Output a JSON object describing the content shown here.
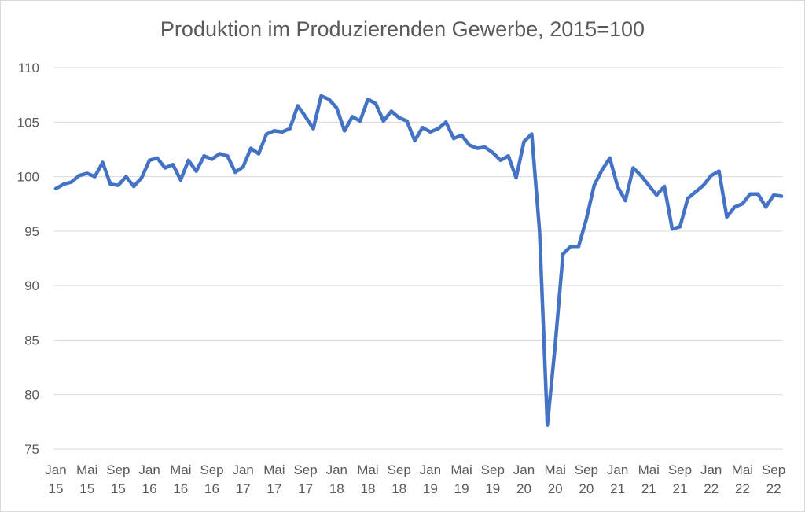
{
  "chart_data": {
    "type": "line",
    "title": "Produktion im Produzierenden Gewerbe, 2015=100",
    "xlabel": "",
    "ylabel": "",
    "ylim": [
      75,
      110
    ],
    "yticks": [
      75,
      80,
      85,
      90,
      95,
      100,
      105,
      110
    ],
    "grid": true,
    "legend": "none",
    "line_color": "#4472c4",
    "x_tick_labels": [
      {
        "month": "Jan",
        "year": "15",
        "index": 0
      },
      {
        "month": "Mai",
        "year": "15",
        "index": 4
      },
      {
        "month": "Sep",
        "year": "15",
        "index": 8
      },
      {
        "month": "Jan",
        "year": "16",
        "index": 12
      },
      {
        "month": "Mai",
        "year": "16",
        "index": 16
      },
      {
        "month": "Sep",
        "year": "16",
        "index": 20
      },
      {
        "month": "Jan",
        "year": "17",
        "index": 24
      },
      {
        "month": "Mai",
        "year": "17",
        "index": 28
      },
      {
        "month": "Sep",
        "year": "17",
        "index": 32
      },
      {
        "month": "Jan",
        "year": "18",
        "index": 36
      },
      {
        "month": "Mai",
        "year": "18",
        "index": 40
      },
      {
        "month": "Sep",
        "year": "18",
        "index": 44
      },
      {
        "month": "Jan",
        "year": "19",
        "index": 48
      },
      {
        "month": "Mai",
        "year": "19",
        "index": 52
      },
      {
        "month": "Sep",
        "year": "19",
        "index": 56
      },
      {
        "month": "Jan",
        "year": "20",
        "index": 60
      },
      {
        "month": "Mai",
        "year": "20",
        "index": 64
      },
      {
        "month": "Sep",
        "year": "20",
        "index": 68
      },
      {
        "month": "Jan",
        "year": "21",
        "index": 72
      },
      {
        "month": "Mai",
        "year": "21",
        "index": 76
      },
      {
        "month": "Sep",
        "year": "21",
        "index": 80
      },
      {
        "month": "Jan",
        "year": "22",
        "index": 84
      },
      {
        "month": "Mai",
        "year": "22",
        "index": 88
      },
      {
        "month": "Sep",
        "year": "22",
        "index": 92
      }
    ],
    "series": [
      {
        "values": [
          98.9,
          99.3,
          99.5,
          100.1,
          100.3,
          100.0,
          101.3,
          99.3,
          99.2,
          100.0,
          99.1,
          99.9,
          101.5,
          101.7,
          100.8,
          101.1,
          99.7,
          101.5,
          100.5,
          101.9,
          101.6,
          102.1,
          101.9,
          100.4,
          100.9,
          102.6,
          102.1,
          103.9,
          104.2,
          104.1,
          104.4,
          106.5,
          105.5,
          104.4,
          107.4,
          107.1,
          106.3,
          104.2,
          105.5,
          105.1,
          107.1,
          106.7,
          105.1,
          106.0,
          105.4,
          105.1,
          103.3,
          104.5,
          104.1,
          104.4,
          105.0,
          103.5,
          103.8,
          102.9,
          102.6,
          102.7,
          102.2,
          101.5,
          101.9,
          99.9,
          103.2,
          103.9,
          95.0,
          77.2,
          84.5,
          92.9,
          93.6,
          93.6,
          96.1,
          99.2,
          100.6,
          101.7,
          99.1,
          97.8,
          100.8,
          100.1,
          99.2,
          98.3,
          99.1,
          95.2,
          95.4,
          98.0,
          98.6,
          99.2,
          100.1,
          100.5,
          96.3,
          97.2,
          97.5,
          98.4,
          98.4,
          97.2,
          98.3,
          98.2
        ]
      }
    ]
  }
}
